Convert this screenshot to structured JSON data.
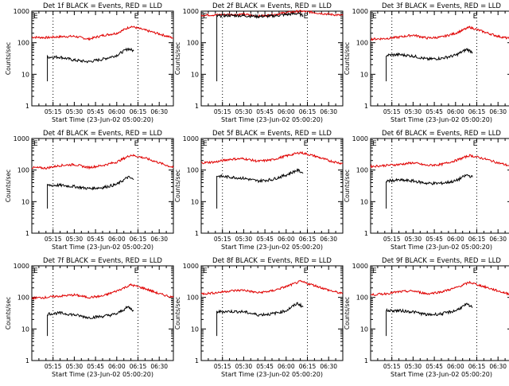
{
  "figure": {
    "x_label": "Start Time (23-Jun-02 05:00:20)",
    "y_label": "Counts/sec",
    "x_ticks": [
      "05:15",
      "05:30",
      "05:45",
      "06:00",
      "06:15",
      "06:30"
    ],
    "x_tick_minutes": [
      15,
      30,
      45,
      60,
      75,
      90
    ],
    "y_ticks": [
      "1",
      "10",
      "100",
      "1000"
    ],
    "y_tick_values": [
      1,
      10,
      100,
      1000
    ],
    "flag_labels": [
      "E",
      "E"
    ],
    "colors": {
      "events": "#000000",
      "lld": "#e00000"
    }
  },
  "chart_data": [
    {
      "type": "line",
      "title": "Det 1f BLACK = Events, RED = LLD",
      "xlabel": "Start Time (23-Jun-02 05:00:20)",
      "ylabel": "Counts/sec",
      "y_scale": "log",
      "ylim": [
        1,
        1000
      ],
      "xlim_minutes": [
        0,
        100
      ],
      "vertical_lines_minutes": [
        15,
        75
      ],
      "series": [
        {
          "color": "#e00000",
          "x": [
            0,
            10,
            20,
            30,
            40,
            50,
            60,
            70,
            80,
            90,
            100
          ],
          "y": [
            150,
            145,
            155,
            160,
            130,
            170,
            200,
            330,
            250,
            190,
            140
          ]
        },
        {
          "color": "#000000",
          "x": [
            11,
            20,
            30,
            40,
            50,
            60,
            68,
            72
          ],
          "y": [
            35,
            35,
            28,
            25,
            30,
            40,
            65,
            55
          ]
        }
      ]
    },
    {
      "type": "line",
      "title": "Det 2f BLACK = Events, RED = LLD",
      "xlabel": "Start Time (23-Jun-02 05:00:20)",
      "ylabel": "Counts/sec",
      "y_scale": "log",
      "ylim": [
        1,
        1000
      ],
      "xlim_minutes": [
        0,
        100
      ],
      "vertical_lines_minutes": [
        15,
        75
      ],
      "series": [
        {
          "color": "#e00000",
          "x": [
            0,
            10,
            20,
            30,
            40,
            50,
            60,
            70,
            80,
            90,
            100
          ],
          "y": [
            750,
            760,
            780,
            790,
            700,
            760,
            900,
            1000,
            900,
            800,
            730
          ]
        },
        {
          "color": "#000000",
          "x": [
            11,
            20,
            30,
            40,
            50,
            60,
            68,
            72
          ],
          "y": [
            700,
            730,
            720,
            680,
            700,
            780,
            850,
            720
          ]
        }
      ]
    },
    {
      "type": "line",
      "title": "Det 3f BLACK = Events, RED = LLD",
      "xlabel": "Start Time (23-Jun-02 05:00:20)",
      "ylabel": "Counts/sec",
      "y_scale": "log",
      "ylim": [
        1,
        1000
      ],
      "xlim_minutes": [
        0,
        100
      ],
      "vertical_lines_minutes": [
        15,
        75
      ],
      "series": [
        {
          "color": "#e00000",
          "x": [
            0,
            10,
            20,
            30,
            40,
            50,
            60,
            70,
            80,
            90,
            100
          ],
          "y": [
            130,
            135,
            150,
            175,
            140,
            150,
            200,
            310,
            220,
            160,
            130
          ]
        },
        {
          "color": "#000000",
          "x": [
            11,
            20,
            30,
            40,
            50,
            60,
            68,
            72
          ],
          "y": [
            40,
            42,
            38,
            30,
            32,
            40,
            62,
            50
          ]
        }
      ]
    },
    {
      "type": "line",
      "title": "Det 4f BLACK = Events, RED = LLD",
      "xlabel": "Start Time (23-Jun-02 05:00:20)",
      "ylabel": "Counts/sec",
      "y_scale": "log",
      "ylim": [
        1,
        1000
      ],
      "xlim_minutes": [
        0,
        100
      ],
      "vertical_lines_minutes": [
        15,
        75
      ],
      "series": [
        {
          "color": "#e00000",
          "x": [
            0,
            10,
            20,
            30,
            40,
            50,
            60,
            70,
            80,
            90,
            100
          ],
          "y": [
            120,
            115,
            140,
            150,
            120,
            140,
            180,
            300,
            240,
            170,
            120
          ]
        },
        {
          "color": "#000000",
          "x": [
            11,
            20,
            30,
            40,
            50,
            60,
            68,
            72
          ],
          "y": [
            33,
            33,
            30,
            26,
            28,
            35,
            60,
            50
          ]
        }
      ]
    },
    {
      "type": "line",
      "title": "Det 5f BLACK = Events, RED = LLD",
      "xlabel": "Start Time (23-Jun-02 05:00:20)",
      "ylabel": "Counts/sec",
      "y_scale": "log",
      "ylim": [
        1,
        1000
      ],
      "xlim_minutes": [
        0,
        100
      ],
      "vertical_lines_minutes": [
        15,
        75
      ],
      "series": [
        {
          "color": "#e00000",
          "x": [
            0,
            10,
            20,
            30,
            40,
            50,
            60,
            70,
            80,
            90,
            100
          ],
          "y": [
            170,
            180,
            220,
            230,
            190,
            210,
            280,
            360,
            280,
            200,
            160
          ]
        },
        {
          "color": "#000000",
          "x": [
            11,
            20,
            30,
            40,
            50,
            60,
            68,
            72
          ],
          "y": [
            65,
            60,
            55,
            45,
            50,
            70,
            100,
            80
          ]
        }
      ]
    },
    {
      "type": "line",
      "title": "Det 6f BLACK = Events, RED = LLD",
      "xlabel": "Start Time (23-Jun-02 05:00:20)",
      "ylabel": "Counts/sec",
      "y_scale": "log",
      "ylim": [
        1,
        1000
      ],
      "xlim_minutes": [
        0,
        100
      ],
      "vertical_lines_minutes": [
        15,
        75
      ],
      "series": [
        {
          "color": "#e00000",
          "x": [
            0,
            10,
            20,
            30,
            40,
            50,
            60,
            70,
            80,
            90,
            100
          ],
          "y": [
            130,
            140,
            150,
            170,
            140,
            150,
            200,
            290,
            230,
            170,
            130
          ]
        },
        {
          "color": "#000000",
          "x": [
            11,
            20,
            30,
            40,
            50,
            60,
            68,
            72
          ],
          "y": [
            45,
            48,
            45,
            38,
            38,
            45,
            70,
            60
          ]
        }
      ]
    },
    {
      "type": "line",
      "title": "Det 7f BLACK = Events, RED = LLD",
      "xlabel": "Start Time (23-Jun-02 05:00:20)",
      "ylabel": "Counts/sec",
      "y_scale": "log",
      "ylim": [
        1,
        1000
      ],
      "xlim_minutes": [
        0,
        100
      ],
      "vertical_lines_minutes": [
        15,
        75
      ],
      "series": [
        {
          "color": "#e00000",
          "x": [
            0,
            10,
            20,
            30,
            40,
            50,
            60,
            70,
            80,
            90,
            100
          ],
          "y": [
            95,
            100,
            110,
            120,
            100,
            110,
            160,
            250,
            190,
            130,
            100
          ]
        },
        {
          "color": "#000000",
          "x": [
            11,
            20,
            30,
            40,
            50,
            60,
            68,
            72
          ],
          "y": [
            30,
            32,
            28,
            23,
            25,
            30,
            50,
            38
          ]
        }
      ]
    },
    {
      "type": "line",
      "title": "Det 8f BLACK = Events, RED = LLD",
      "xlabel": "Start Time (23-Jun-02 05:00:20)",
      "ylabel": "Counts/sec",
      "y_scale": "log",
      "ylim": [
        1,
        1000
      ],
      "xlim_minutes": [
        0,
        100
      ],
      "vertical_lines_minutes": [
        15,
        75
      ],
      "series": [
        {
          "color": "#e00000",
          "x": [
            0,
            10,
            20,
            30,
            40,
            50,
            60,
            70,
            80,
            90,
            100
          ],
          "y": [
            130,
            140,
            160,
            170,
            140,
            160,
            220,
            320,
            240,
            170,
            130
          ]
        },
        {
          "color": "#000000",
          "x": [
            11,
            20,
            30,
            40,
            50,
            60,
            68,
            72
          ],
          "y": [
            35,
            36,
            35,
            28,
            30,
            38,
            65,
            50
          ]
        }
      ]
    },
    {
      "type": "line",
      "title": "Det 9f BLACK = Events, RED = LLD",
      "xlabel": "Start Time (23-Jun-02 05:00:20)",
      "ylabel": "Counts/sec",
      "y_scale": "log",
      "ylim": [
        1,
        1000
      ],
      "xlim_minutes": [
        0,
        100
      ],
      "vertical_lines_minutes": [
        15,
        75
      ],
      "series": [
        {
          "color": "#e00000",
          "x": [
            0,
            10,
            20,
            30,
            40,
            50,
            60,
            70,
            80,
            90,
            100
          ],
          "y": [
            120,
            130,
            150,
            160,
            130,
            150,
            200,
            300,
            220,
            160,
            120
          ]
        },
        {
          "color": "#000000",
          "x": [
            11,
            20,
            30,
            40,
            50,
            60,
            68,
            72
          ],
          "y": [
            38,
            38,
            35,
            28,
            30,
            38,
            60,
            48
          ]
        }
      ]
    }
  ]
}
